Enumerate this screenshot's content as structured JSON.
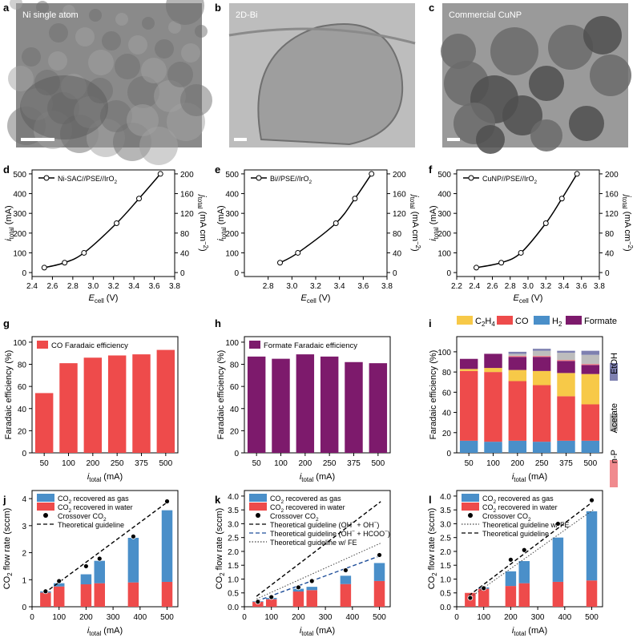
{
  "figure": {
    "panel_letters": [
      "a",
      "b",
      "c",
      "d",
      "e",
      "f",
      "g",
      "h",
      "i",
      "j",
      "k",
      "l"
    ],
    "micrographs": [
      {
        "label": "Ni single atom",
        "tone": "#8a8a8a"
      },
      {
        "label": "2D-Bi",
        "tone": "#bdbdbd"
      },
      {
        "label": "Commercial CuNP",
        "tone": "#9a9a9a"
      }
    ]
  },
  "chart_data": [
    {
      "panel": "d",
      "type": "line",
      "legend": "Ni-SAC//PSE//IrO2",
      "xlabel": "Ecell (V)",
      "ylabel": "itotal (mA)",
      "y2label": "jtotal (mA cm-2)",
      "xlim": [
        2.4,
        3.8
      ],
      "xticks": [
        "2.4",
        "2.6",
        "2.8",
        "3.0",
        "3.2",
        "3.4",
        "3.6",
        "3.8"
      ],
      "ylim": [
        -20,
        520
      ],
      "yticks": [
        "0",
        "100",
        "200",
        "300",
        "400",
        "500"
      ],
      "y2ticks": [
        "0",
        "40",
        "80",
        "120",
        "160",
        "200"
      ],
      "x": [
        2.52,
        2.72,
        2.91,
        3.23,
        3.45,
        3.66
      ],
      "y": [
        25,
        50,
        100,
        250,
        375,
        500
      ]
    },
    {
      "panel": "e",
      "type": "line",
      "legend": "Bi//PSE//IrO2",
      "xlabel": "Ecell (V)",
      "ylabel": "itotal (mA)",
      "y2label": "jtotal (mA cm-2)",
      "xlim": [
        2.6,
        3.8
      ],
      "xticks": [
        "2.8",
        "3.0",
        "3.2",
        "3.4",
        "3.6",
        "3.8"
      ],
      "ylim": [
        -20,
        520
      ],
      "yticks": [
        "0",
        "100",
        "200",
        "300",
        "400",
        "500"
      ],
      "y2ticks": [
        "0",
        "40",
        "80",
        "120",
        "160",
        "200"
      ],
      "x": [
        2.9,
        3.05,
        3.37,
        3.53,
        3.67
      ],
      "y": [
        50,
        100,
        250,
        375,
        500
      ]
    },
    {
      "panel": "f",
      "type": "line",
      "legend": "CuNP//PSE//IrO2",
      "xlabel": "Ecell (V)",
      "ylabel": "itotal (mA)",
      "y2label": "jtotal (mA cm-2)",
      "xlim": [
        2.2,
        3.8
      ],
      "xticks": [
        "2.2",
        "2.4",
        "2.6",
        "2.8",
        "3.0",
        "3.2",
        "3.4",
        "3.6",
        "3.8"
      ],
      "ylim": [
        -20,
        520
      ],
      "yticks": [
        "0",
        "100",
        "200",
        "300",
        "400",
        "500"
      ],
      "y2ticks": [
        "0",
        "40",
        "80",
        "120",
        "160",
        "200"
      ],
      "x": [
        2.42,
        2.7,
        2.92,
        3.2,
        3.38,
        3.55
      ],
      "y": [
        25,
        50,
        100,
        250,
        375,
        500
      ]
    },
    {
      "panel": "g",
      "type": "bar",
      "legend": "CO Faradaic efficiency",
      "color": "#EE4B4B",
      "xlabel": "itotal (mA)",
      "ylabel": "Faradaic efficiency (%)",
      "ylim": [
        0,
        105
      ],
      "yticks": [
        "0",
        "20",
        "40",
        "60",
        "80",
        "100"
      ],
      "categories": [
        "50",
        "100",
        "200",
        "250",
        "375",
        "500"
      ],
      "values": [
        54,
        81,
        86,
        88,
        89,
        93
      ]
    },
    {
      "panel": "h",
      "type": "bar",
      "legend": "Formate Faradaic efficiency",
      "color": "#7D1A6C",
      "xlabel": "itotal (mA)",
      "ylabel": "Faradaic efficiency (%)",
      "ylim": [
        0,
        105
      ],
      "yticks": [
        "0",
        "20",
        "40",
        "60",
        "80",
        "100"
      ],
      "categories": [
        "50",
        "100",
        "200",
        "250",
        "375",
        "500"
      ],
      "values": [
        87,
        85,
        89,
        87,
        82,
        81
      ]
    },
    {
      "panel": "i",
      "type": "bar",
      "stacked": true,
      "xlabel": "itotal (mA)",
      "ylabel": "Faradaic efficiency (%)",
      "ylim": [
        0,
        115
      ],
      "yticks": [
        "0",
        "20",
        "40",
        "60",
        "80",
        "100"
      ],
      "categories": [
        "50",
        "100",
        "200",
        "250",
        "375",
        "500"
      ],
      "series": [
        {
          "name": "H2",
          "color": "#4A8FC9",
          "values": [
            12,
            11,
            12,
            11,
            12,
            12
          ]
        },
        {
          "name": "CO",
          "color": "#EE4B4B",
          "values": [
            69,
            69,
            59,
            56,
            44,
            36
          ]
        },
        {
          "name": "C2H4",
          "color": "#F7C948",
          "values": [
            2,
            4,
            11,
            14,
            23,
            30
          ]
        },
        {
          "name": "Formate",
          "color": "#7D1A6C",
          "values": [
            10,
            14,
            13,
            14,
            12,
            9
          ]
        },
        {
          "name": "n-P",
          "color": "#F08A8E",
          "values": [
            0,
            0,
            1,
            1,
            1,
            1
          ]
        },
        {
          "name": "Acetate",
          "color": "#BDBDBD",
          "values": [
            0,
            0,
            2,
            5,
            7,
            9
          ]
        },
        {
          "name": "EtOH",
          "color": "#7E80B0",
          "values": [
            0,
            0,
            2,
            2,
            2,
            4
          ]
        }
      ],
      "legend_top": [
        "C2H4",
        "CO",
        "H2",
        "Formate"
      ],
      "legend_side": [
        "EtOH",
        "Acetate",
        "n-P"
      ]
    },
    {
      "panel": "j",
      "type": "bar",
      "xlabel": "itotal (mA)",
      "ylabel": "CO2 flow rate (sccm)",
      "xlim": [
        0,
        540
      ],
      "xticks": [
        "0",
        "100",
        "200",
        "300",
        "400",
        "500"
      ],
      "ylim": [
        0,
        4.3
      ],
      "yticks": [
        "0",
        "1",
        "2",
        "3",
        "4"
      ],
      "x": [
        50,
        100,
        200,
        250,
        375,
        500
      ],
      "series": [
        {
          "name": "CO2 recovered as gas",
          "color": "#4A8FC9",
          "values": [
            0.05,
            0.12,
            0.37,
            0.83,
            1.65,
            2.65
          ]
        },
        {
          "name": "CO2 recovered in water",
          "color": "#EE4B4B",
          "values": [
            0.52,
            0.75,
            0.83,
            0.87,
            0.9,
            0.92
          ]
        },
        {
          "name": "Crossover CO2",
          "marker": "circle",
          "values": [
            0.57,
            0.95,
            1.5,
            1.78,
            2.6,
            3.9
          ]
        },
        {
          "name": "Theoretical guideline",
          "style": "dashed",
          "endpoints_x": [
            45,
            505
          ],
          "endpoints_y": [
            0.5,
            3.9
          ]
        }
      ]
    },
    {
      "panel": "k",
      "type": "bar",
      "xlabel": "itotal (mA)",
      "ylabel": "CO2 flow rate (sccm)",
      "xlim": [
        0,
        540
      ],
      "xticks": [
        "0",
        "100",
        "200",
        "300",
        "400",
        "500"
      ],
      "ylim": [
        0,
        4.2
      ],
      "yticks": [
        "0.0",
        "0.5",
        "1.0",
        "1.5",
        "2.0",
        "2.5",
        "3.0",
        "3.5",
        "4.0"
      ],
      "x": [
        50,
        100,
        200,
        250,
        375,
        500
      ],
      "series": [
        {
          "name": "CO2 recovered as gas",
          "color": "#4A8FC9",
          "values": [
            0.02,
            0.05,
            0.1,
            0.12,
            0.3,
            0.65
          ]
        },
        {
          "name": "CO2 recovered in water",
          "color": "#EE4B4B",
          "values": [
            0.18,
            0.27,
            0.55,
            0.6,
            0.82,
            0.93
          ]
        },
        {
          "name": "Crossover CO2",
          "marker": "circle",
          "values": [
            0.18,
            0.35,
            0.7,
            0.93,
            1.32,
            1.87
          ]
        },
        {
          "name": "Theoretical guideline (OH- + OH-)",
          "style": "dashed",
          "color": "#000000",
          "endpoints_x": [
            45,
            505
          ],
          "endpoints_y": [
            0.38,
            3.8
          ]
        },
        {
          "name": "Theoretical guideline (OH- + HCOO-)",
          "style": "dashed",
          "color": "#1F4E9A",
          "endpoints_x": [
            45,
            505
          ],
          "endpoints_y": [
            0.2,
            1.85
          ]
        },
        {
          "name": "Theoretical guideline w/ FE",
          "style": "dotted",
          "color": "#444444",
          "endpoints_x": [
            45,
            505
          ],
          "endpoints_y": [
            0.28,
            2.3
          ]
        }
      ]
    },
    {
      "panel": "l",
      "type": "bar",
      "xlabel": "itotal (mA)",
      "ylabel": "CO2 flow rate (sccm)",
      "xlim": [
        0,
        540
      ],
      "xticks": [
        "0",
        "100",
        "200",
        "300",
        "400",
        "500"
      ],
      "ylim": [
        0,
        4.2
      ],
      "yticks": [
        "0.0",
        "0.5",
        "1.0",
        "1.5",
        "2.0",
        "2.5",
        "3.0",
        "3.5",
        "4.0"
      ],
      "x": [
        50,
        100,
        200,
        250,
        375,
        500
      ],
      "series": [
        {
          "name": "CO2 recovered as gas",
          "color": "#4A8FC9",
          "values": [
            0.0,
            0.05,
            0.53,
            0.8,
            1.6,
            2.5
          ]
        },
        {
          "name": "CO2 recovered in water",
          "color": "#EE4B4B",
          "values": [
            0.5,
            0.65,
            0.75,
            0.85,
            0.9,
            0.95
          ]
        },
        {
          "name": "Crossover CO2",
          "marker": "circle",
          "values": [
            0.32,
            0.67,
            1.7,
            2.05,
            3.0,
            3.85
          ]
        },
        {
          "name": "Theoretical guideline w/ FE",
          "style": "dotted",
          "color": "#444444",
          "endpoints_x": [
            45,
            505
          ],
          "endpoints_y": [
            0.3,
            3.5
          ]
        },
        {
          "name": "Theoretical guideline",
          "style": "dashed",
          "color": "#000000",
          "endpoints_x": [
            45,
            505
          ],
          "endpoints_y": [
            0.4,
            3.8
          ]
        }
      ]
    }
  ]
}
